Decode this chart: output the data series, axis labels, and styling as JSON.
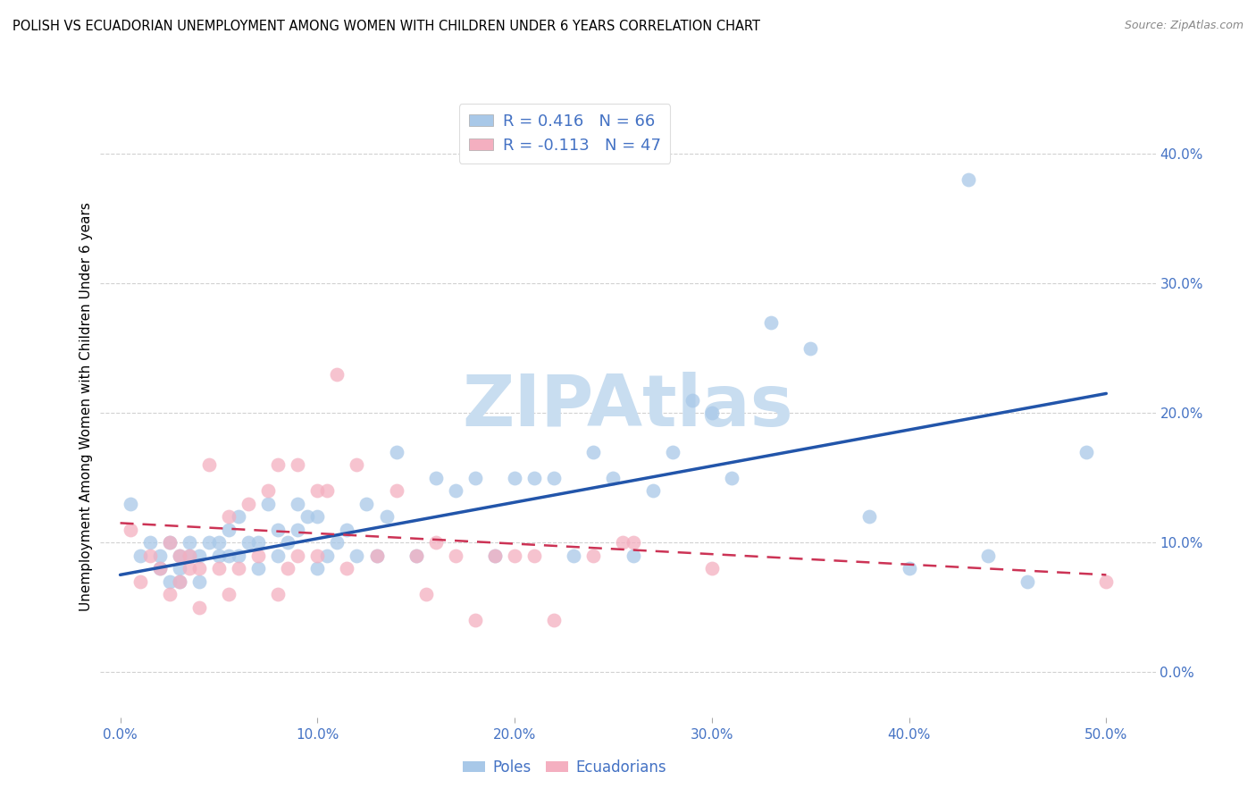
{
  "title": "POLISH VS ECUADORIAN UNEMPLOYMENT AMONG WOMEN WITH CHILDREN UNDER 6 YEARS CORRELATION CHART",
  "source": "Source: ZipAtlas.com",
  "ylabel": "Unemployment Among Women with Children Under 6 years",
  "xlabel_ticks": [
    "0.0%",
    "10.0%",
    "20.0%",
    "30.0%",
    "40.0%",
    "50.0%"
  ],
  "xlabel_vals": [
    0.0,
    0.1,
    0.2,
    0.3,
    0.4,
    0.5
  ],
  "ylabel_ticks": [
    "0.0%",
    "10.0%",
    "20.0%",
    "30.0%",
    "40.0%"
  ],
  "ylabel_vals": [
    0.0,
    0.1,
    0.2,
    0.3,
    0.4
  ],
  "xlim": [
    -0.01,
    0.525
  ],
  "ylim": [
    -0.035,
    0.445
  ],
  "poles_R": 0.416,
  "poles_N": 66,
  "ecu_R": -0.113,
  "ecu_N": 47,
  "poles_color": "#a8c8e8",
  "ecu_color": "#f4afc0",
  "poles_line_color": "#2255aa",
  "ecu_line_color": "#cc3355",
  "watermark_text": "ZIPAtlas",
  "watermark_color": "#c8ddf0",
  "poles_x": [
    0.005,
    0.01,
    0.015,
    0.02,
    0.02,
    0.025,
    0.025,
    0.03,
    0.03,
    0.03,
    0.035,
    0.035,
    0.04,
    0.04,
    0.045,
    0.05,
    0.05,
    0.055,
    0.055,
    0.06,
    0.06,
    0.065,
    0.07,
    0.07,
    0.075,
    0.08,
    0.08,
    0.085,
    0.09,
    0.09,
    0.095,
    0.1,
    0.1,
    0.105,
    0.11,
    0.115,
    0.12,
    0.125,
    0.13,
    0.135,
    0.14,
    0.15,
    0.16,
    0.17,
    0.18,
    0.19,
    0.2,
    0.21,
    0.22,
    0.23,
    0.24,
    0.25,
    0.26,
    0.27,
    0.28,
    0.29,
    0.3,
    0.31,
    0.33,
    0.35,
    0.38,
    0.4,
    0.43,
    0.44,
    0.46,
    0.49
  ],
  "poles_y": [
    0.13,
    0.09,
    0.1,
    0.08,
    0.09,
    0.07,
    0.1,
    0.07,
    0.08,
    0.09,
    0.09,
    0.1,
    0.07,
    0.09,
    0.1,
    0.09,
    0.1,
    0.09,
    0.11,
    0.09,
    0.12,
    0.1,
    0.08,
    0.1,
    0.13,
    0.09,
    0.11,
    0.1,
    0.11,
    0.13,
    0.12,
    0.08,
    0.12,
    0.09,
    0.1,
    0.11,
    0.09,
    0.13,
    0.09,
    0.12,
    0.17,
    0.09,
    0.15,
    0.14,
    0.15,
    0.09,
    0.15,
    0.15,
    0.15,
    0.09,
    0.17,
    0.15,
    0.09,
    0.14,
    0.17,
    0.21,
    0.2,
    0.15,
    0.27,
    0.25,
    0.12,
    0.08,
    0.38,
    0.09,
    0.07,
    0.17
  ],
  "ecu_x": [
    0.005,
    0.01,
    0.015,
    0.02,
    0.025,
    0.025,
    0.03,
    0.03,
    0.035,
    0.035,
    0.04,
    0.04,
    0.045,
    0.05,
    0.055,
    0.055,
    0.06,
    0.065,
    0.07,
    0.075,
    0.08,
    0.08,
    0.085,
    0.09,
    0.09,
    0.1,
    0.1,
    0.105,
    0.11,
    0.115,
    0.12,
    0.13,
    0.14,
    0.15,
    0.155,
    0.16,
    0.17,
    0.18,
    0.19,
    0.2,
    0.21,
    0.22,
    0.24,
    0.255,
    0.26,
    0.3,
    0.5
  ],
  "ecu_y": [
    0.11,
    0.07,
    0.09,
    0.08,
    0.06,
    0.1,
    0.07,
    0.09,
    0.08,
    0.09,
    0.05,
    0.08,
    0.16,
    0.08,
    0.06,
    0.12,
    0.08,
    0.13,
    0.09,
    0.14,
    0.06,
    0.16,
    0.08,
    0.09,
    0.16,
    0.09,
    0.14,
    0.14,
    0.23,
    0.08,
    0.16,
    0.09,
    0.14,
    0.09,
    0.06,
    0.1,
    0.09,
    0.04,
    0.09,
    0.09,
    0.09,
    0.04,
    0.09,
    0.1,
    0.1,
    0.08,
    0.07
  ],
  "background_color": "#ffffff",
  "grid_color": "#cccccc",
  "poles_line_x0": 0.0,
  "poles_line_y0": 0.075,
  "poles_line_x1": 0.5,
  "poles_line_y1": 0.215,
  "ecu_line_x0": 0.0,
  "ecu_line_y0": 0.115,
  "ecu_line_x1": 0.5,
  "ecu_line_y1": 0.075
}
